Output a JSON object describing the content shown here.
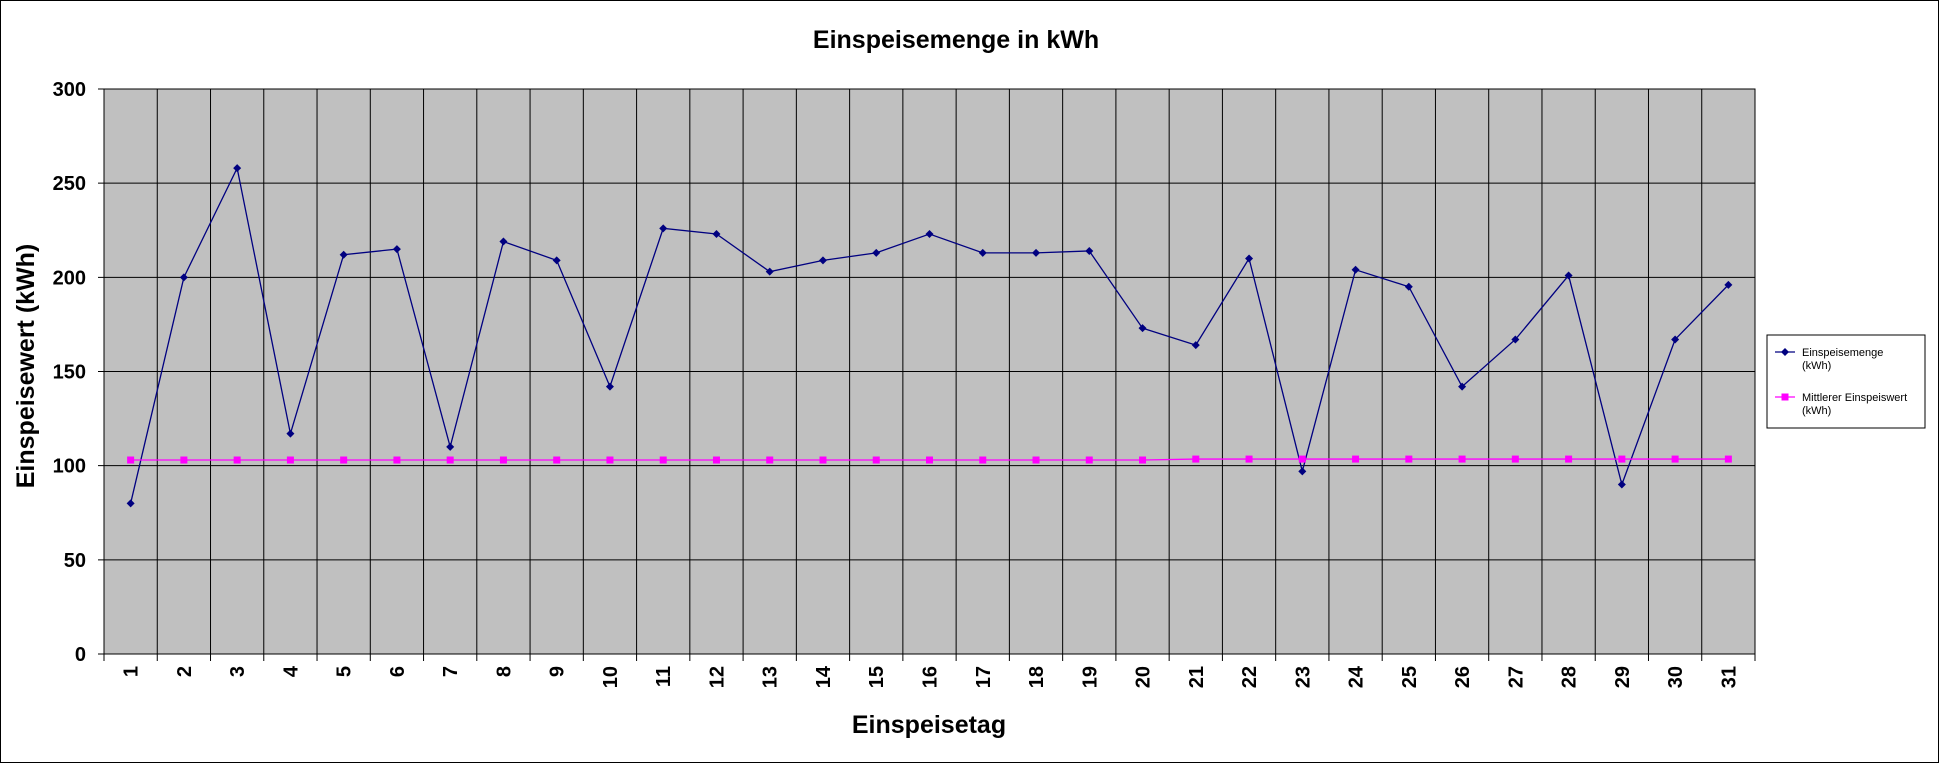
{
  "chart_data": {
    "type": "line",
    "title": "Einspeisemenge in kWh",
    "xlabel": "Einspeisetag",
    "ylabel": "Einspeisewert  (kWh)",
    "ylim": [
      0,
      300
    ],
    "yticks": [
      0,
      50,
      100,
      150,
      200,
      250,
      300
    ],
    "grid": true,
    "legend_position": "right",
    "categories": [
      "1",
      "2",
      "3",
      "4",
      "5",
      "6",
      "7",
      "8",
      "9",
      "10",
      "11",
      "12",
      "13",
      "14",
      "15",
      "16",
      "17",
      "18",
      "19",
      "20",
      "21",
      "22",
      "23",
      "24",
      "25",
      "26",
      "27",
      "28",
      "29",
      "30",
      "31"
    ],
    "series": [
      {
        "name": "Einspeisemenge (kWh)",
        "name_lines": [
          "Einspeisemenge",
          "(kWh)"
        ],
        "color": "#000080",
        "marker": "diamond",
        "values": [
          80,
          200,
          258,
          117,
          212,
          215,
          110,
          219,
          209,
          142,
          226,
          223,
          203,
          209,
          213,
          223,
          213,
          213,
          214,
          173,
          164,
          210,
          97,
          204,
          195,
          142,
          167,
          201,
          90,
          167,
          196
        ]
      },
      {
        "name": "Mittlerer Einspeiswert (kWh)",
        "name_lines": [
          "Mittlerer Einspeiswert",
          "(kWh)"
        ],
        "color": "#ff00ff",
        "marker": "square",
        "values": [
          103,
          103,
          103,
          103,
          103,
          103,
          103,
          103,
          103,
          103,
          103,
          103,
          103,
          103,
          103,
          103,
          103,
          103,
          103,
          103,
          103.5,
          103.5,
          103.5,
          103.5,
          103.5,
          103.5,
          103.5,
          103.5,
          103.5,
          103.5,
          103.5
        ]
      }
    ],
    "colors": {
      "plot_background": "#c0c0c0",
      "gridline": "#000000"
    }
  }
}
